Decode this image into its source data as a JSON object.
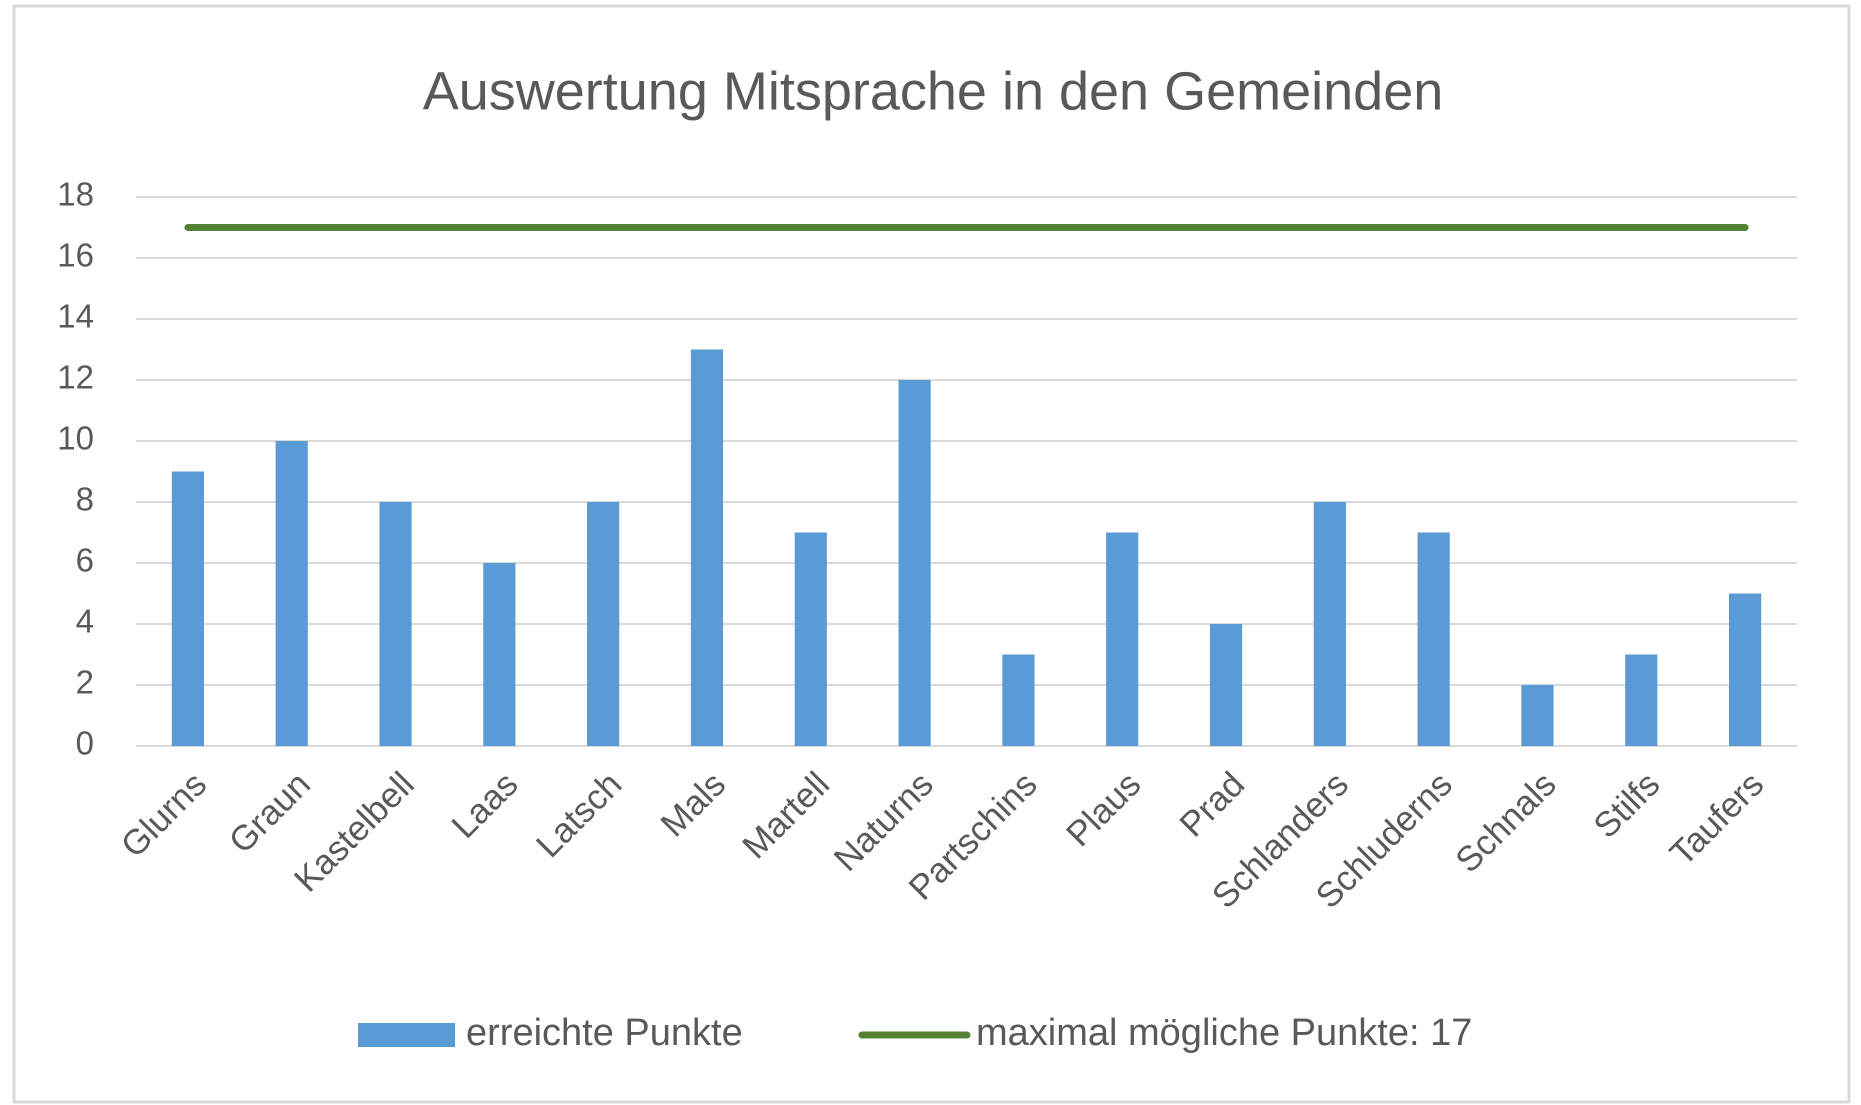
{
  "chart_data": {
    "type": "bar",
    "title": "Auswertung Mitsprache in den Gemeinden",
    "categories": [
      "Glurns",
      "Graun",
      "Kastelbell",
      "Laas",
      "Latsch",
      "Mals",
      "Martell",
      "Naturns",
      "Partschins",
      "Plaus",
      "Prad",
      "Schlanders",
      "Schluderns",
      "Schnals",
      "Stilfs",
      "Taufers"
    ],
    "series": [
      {
        "name": "erreichte Punkte",
        "type": "bar",
        "color": "#5b9bd5",
        "values": [
          9,
          10,
          8,
          6,
          8,
          13,
          7,
          12,
          3,
          7,
          4,
          8,
          7,
          2,
          3,
          5
        ]
      },
      {
        "name": "maximal mögliche Punkte: 17",
        "type": "line",
        "color": "#548235",
        "values": [
          17,
          17,
          17,
          17,
          17,
          17,
          17,
          17,
          17,
          17,
          17,
          17,
          17,
          17,
          17,
          17
        ]
      }
    ],
    "ylim": [
      0,
      18
    ],
    "yticks": [
      0,
      2,
      4,
      6,
      8,
      10,
      12,
      14,
      16,
      18
    ],
    "grid": true,
    "legend": "bottom"
  }
}
